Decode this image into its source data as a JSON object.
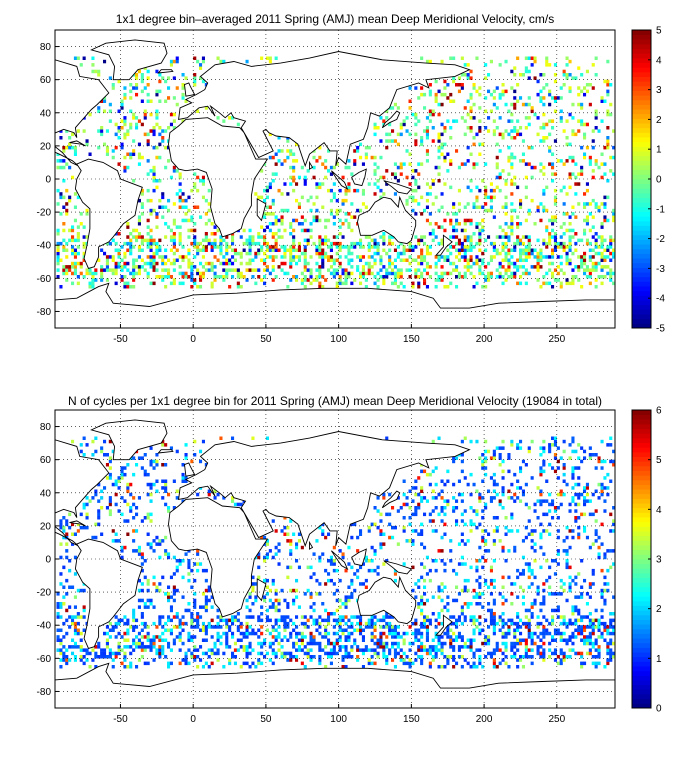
{
  "panels": [
    {
      "id": "top",
      "title": "1x1 degree bin–averaged 2011 Spring (AMJ) mean Deep Meridional Velocity, cm/s",
      "xticks": [
        -50,
        0,
        50,
        100,
        150,
        200,
        250
      ],
      "yticks": [
        -80,
        -60,
        -40,
        -20,
        0,
        20,
        40,
        60,
        80
      ],
      "xlim": [
        -95,
        290
      ],
      "ylim": [
        -90,
        90
      ],
      "colorbar": {
        "min": -5,
        "max": 5,
        "ticks": [
          -5,
          -4,
          -3,
          -2,
          -1,
          0,
          1,
          2,
          3,
          4,
          5
        ],
        "colormap": "jet"
      }
    },
    {
      "id": "bottom",
      "title": "N of cycles per 1x1 degree bin for 2011 Spring (AMJ) mean Deep Meridional Velocity (19084 in total)",
      "xticks": [
        -50,
        0,
        50,
        100,
        150,
        200,
        250
      ],
      "yticks": [
        -80,
        -60,
        -40,
        -20,
        0,
        20,
        40,
        60,
        80
      ],
      "xlim": [
        -95,
        290
      ],
      "ylim": [
        -90,
        90
      ],
      "colorbar": {
        "min": 0,
        "max": 6,
        "ticks": [
          0,
          1,
          2,
          3,
          4,
          5,
          6
        ],
        "colormap": "jet"
      }
    }
  ]
}
